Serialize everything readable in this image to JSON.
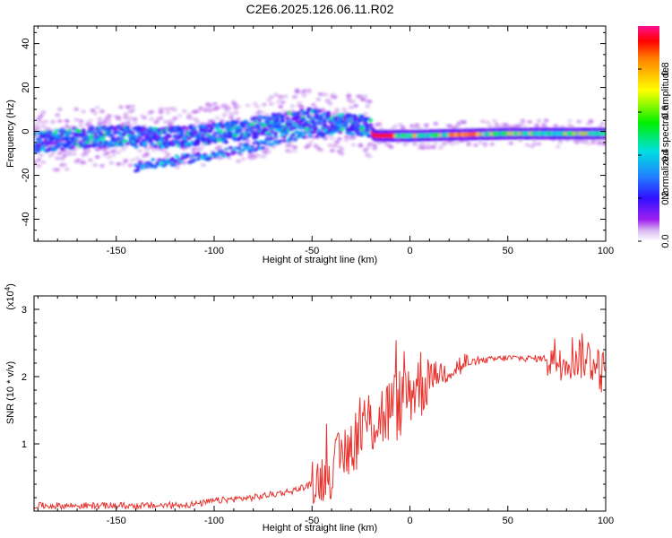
{
  "title": "C2E6.2025.126.06.11.R02",
  "chart_data": [
    {
      "type": "heatmap",
      "xlabel": "Height of straight line (km)",
      "ylabel": "Frequency (Hz)",
      "xlim": [
        -192,
        100
      ],
      "ylim": [
        -50,
        48
      ],
      "xticks": [
        "-150",
        "-100",
        "-50",
        "0",
        "50",
        "100"
      ],
      "yticks": [
        "40",
        "20",
        "0",
        "-20",
        "-40"
      ],
      "colorbar": {
        "label": "Normalized spectral amplitude",
        "range": [
          0,
          1
        ],
        "ticks": [
          "0.0",
          "0.2",
          "0.4",
          "0.6",
          "0.8"
        ]
      },
      "ridge": {
        "x": [
          -192,
          -170,
          -150,
          -130,
          -110,
          -90,
          -70,
          -50,
          -30,
          -22,
          -18,
          0,
          50,
          100
        ],
        "y": [
          -5,
          -3,
          -2,
          -3,
          -2,
          0,
          3,
          6,
          3,
          3,
          -2,
          -2,
          -1,
          -1
        ]
      },
      "secondary_branch": {
        "x": [
          -140,
          -125,
          -110,
          -95,
          -80,
          -65,
          -50,
          -35
        ],
        "y": [
          -16,
          -14,
          -12,
          -10,
          -7,
          -3,
          -1,
          1
        ]
      },
      "grid": false
    },
    {
      "type": "line",
      "xlabel": "Height of straight line (km)",
      "ylabel": "SNR (10 * v/v)",
      "multiplier": "(x10",
      "multiplier_exp": "4",
      "multiplier_close": ")",
      "xlim": [
        -192,
        100
      ],
      "ylim": [
        0,
        3.2
      ],
      "xticks": [
        "-150",
        "-100",
        "-50",
        "0",
        "50",
        "100"
      ],
      "yticks": [
        "1",
        "2",
        "3"
      ],
      "color": "#e8322d",
      "series": [
        {
          "x": [
            -192,
            -170,
            -150,
            -130,
            -110,
            -100,
            -90,
            -80,
            -70,
            -60,
            -50,
            -45,
            -40,
            -35,
            -30,
            -25,
            -20,
            -15,
            -10,
            -5,
            0,
            10,
            20,
            30,
            40,
            50,
            60,
            70,
            80,
            85,
            90,
            95,
            100
          ],
          "values": [
            0.08,
            0.08,
            0.08,
            0.08,
            0.1,
            0.15,
            0.18,
            0.2,
            0.25,
            0.3,
            0.4,
            0.5,
            0.6,
            0.8,
            1.0,
            1.2,
            1.35,
            1.4,
            1.5,
            1.6,
            1.8,
            2.0,
            2.1,
            2.2,
            2.25,
            2.28,
            2.27,
            2.27,
            2.3,
            2.3,
            2.3,
            2.2,
            2.0
          ]
        }
      ],
      "grid": false
    }
  ]
}
